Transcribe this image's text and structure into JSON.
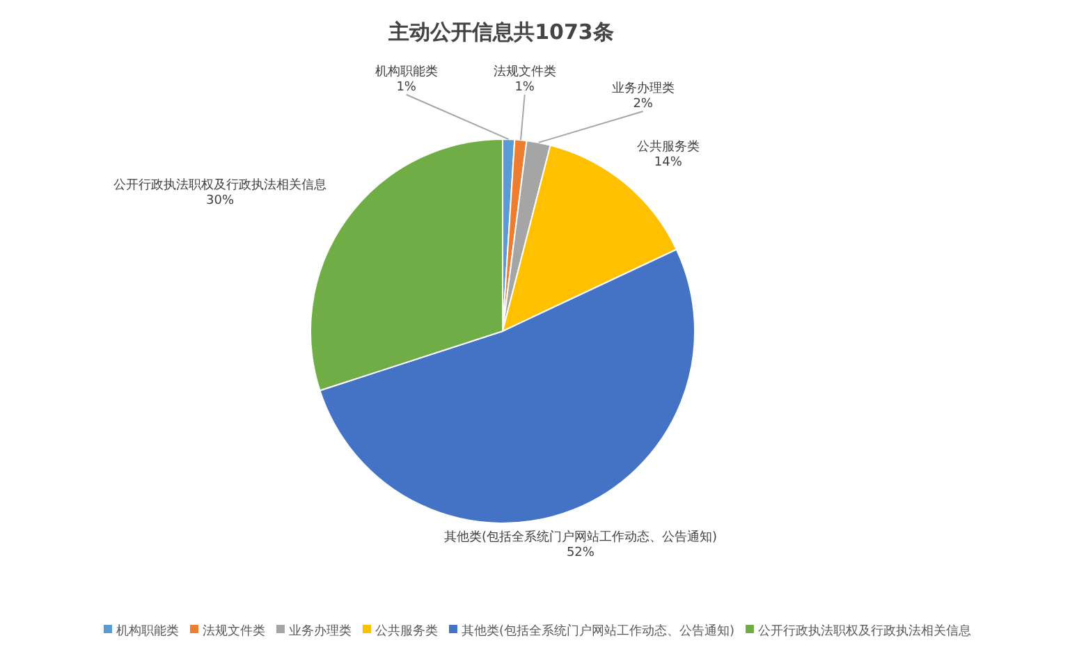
{
  "chart_data": {
    "type": "pie",
    "title": "主动公开信息共1073条",
    "categories": [
      "机构职能类",
      "法规文件类",
      "业务办理类",
      "公共服务类",
      "其他类(包括全系统门户网站工作动态、公告通知)",
      "公开行政执法职权及行政执法相关信息"
    ],
    "values": [
      1,
      1,
      2,
      14,
      52,
      30
    ],
    "colors": [
      "#5b9bd5",
      "#ed7d31",
      "#a5a5a5",
      "#ffc000",
      "#4472c4",
      "#70ad47"
    ],
    "value_labels": [
      "1%",
      "1%",
      "2%",
      "14%",
      "52%",
      "30%"
    ],
    "legend": "bottom"
  }
}
